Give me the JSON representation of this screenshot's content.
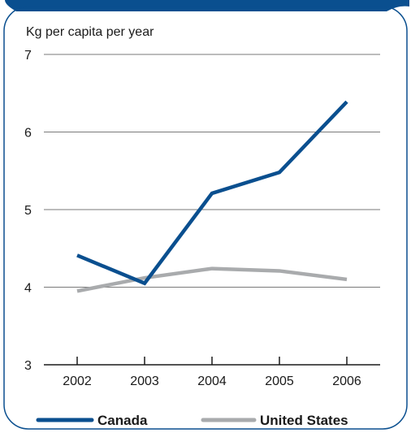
{
  "chart_data": {
    "type": "line",
    "ylabel": "Kg per capita per year",
    "xlabel": "",
    "x": [
      "2002",
      "2003",
      "2004",
      "2005",
      "2006"
    ],
    "ylim": [
      3,
      7
    ],
    "yticks": [
      3,
      4,
      5,
      6,
      7
    ],
    "grid": true,
    "legend_position": "bottom",
    "series": [
      {
        "name": "Canada",
        "color": "#0a4f8f",
        "values": [
          4.41,
          4.05,
          5.21,
          5.48,
          6.39
        ]
      },
      {
        "name": "United States",
        "color": "#a9abad",
        "values": [
          3.95,
          4.12,
          4.24,
          4.21,
          4.1
        ]
      }
    ]
  },
  "colors": {
    "frame_accent": "#0a4f8f",
    "gridline": "#7a7a7a",
    "axis": "#1a1a1a"
  }
}
